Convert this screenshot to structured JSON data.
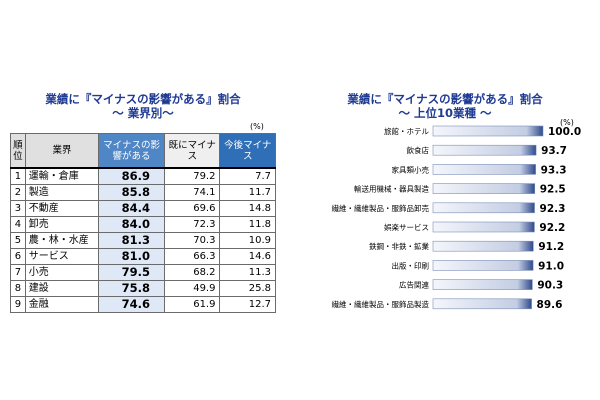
{
  "left": {
    "title_line1": "業績に『マイナスの影響がある』割合",
    "title_line2": "～ 業界別～",
    "unit": "(%)",
    "headers": {
      "rank": "順位",
      "industry": "業界",
      "negative": "マイナスの影響がある",
      "current": "既にマイナス",
      "future": "今後マイナス"
    },
    "rows": [
      {
        "rank": "1",
        "industry": "運輸・倉庫",
        "negative": "86.9",
        "current": "79.2",
        "future": "7.7"
      },
      {
        "rank": "2",
        "industry": "製造",
        "negative": "85.8",
        "current": "74.1",
        "future": "11.7"
      },
      {
        "rank": "3",
        "industry": "不動産",
        "negative": "84.4",
        "current": "69.6",
        "future": "14.8"
      },
      {
        "rank": "4",
        "industry": "卸売",
        "negative": "84.0",
        "current": "72.3",
        "future": "11.8"
      },
      {
        "rank": "5",
        "industry": "農・林・水産",
        "negative": "81.3",
        "current": "70.3",
        "future": "10.9"
      },
      {
        "rank": "6",
        "industry": "サービス",
        "negative": "81.0",
        "current": "66.3",
        "future": "14.6"
      },
      {
        "rank": "7",
        "industry": "小売",
        "negative": "79.5",
        "current": "68.2",
        "future": "11.3"
      },
      {
        "rank": "8",
        "industry": "建設",
        "negative": "75.8",
        "current": "49.9",
        "future": "25.8"
      },
      {
        "rank": "9",
        "industry": "金融",
        "negative": "74.6",
        "current": "61.9",
        "future": "12.7"
      }
    ]
  },
  "right": {
    "title_line1": "業績に『マイナスの影響がある』割合",
    "title_line2": "～ 上位10業種 ～",
    "unit": "(%)"
  },
  "colors": {
    "title": "#1f3a93",
    "bar_light": "#f4f6fb",
    "bar_dark": "#2e4a8c"
  },
  "chart_data": {
    "type": "bar",
    "orientation": "horizontal",
    "categories": [
      "旅館・ホテル",
      "飲食店",
      "家具類小売",
      "輸送用機械・器具製造",
      "繊維・繊維製品・服飾品卸売",
      "娯楽サービス",
      "鉄鋼・非鉄・鉱業",
      "出版・印刷",
      "広告関連",
      "繊維・繊維製品・服飾品製造"
    ],
    "values": [
      100.0,
      93.7,
      93.3,
      92.5,
      92.3,
      92.2,
      91.2,
      91.0,
      90.3,
      89.6
    ],
    "value_labels": [
      "100.0",
      "93.7",
      "93.3",
      "92.5",
      "92.3",
      "92.2",
      "91.2",
      "91.0",
      "90.3",
      "89.6"
    ],
    "xlim": [
      0,
      100
    ],
    "grid": false,
    "legend": "none"
  }
}
